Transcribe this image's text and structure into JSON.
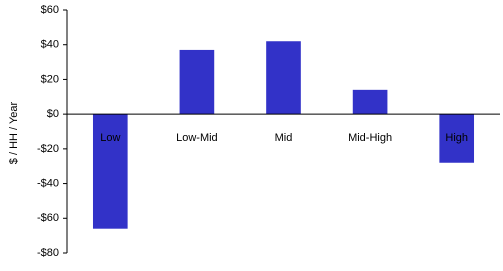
{
  "chart_data": {
    "type": "bar",
    "y_label": "$ / HH / Year",
    "categories": [
      "Low",
      "Low-Mid",
      "Mid",
      "Mid-High",
      "High"
    ],
    "values": [
      -66,
      37,
      42,
      14,
      -28
    ],
    "color": "#3232c8",
    "ylim": [
      -80,
      60
    ],
    "yticks": [
      {
        "value": -80,
        "label": "-$80"
      },
      {
        "value": -60,
        "label": "-$60"
      },
      {
        "value": -40,
        "label": "-$40"
      },
      {
        "value": -20,
        "label": "-$20"
      },
      {
        "value": 0,
        "label": "$0"
      },
      {
        "value": 20,
        "label": "$20"
      },
      {
        "value": 40,
        "label": "$40"
      },
      {
        "value": 60,
        "label": "$60"
      }
    ],
    "grid": false
  }
}
